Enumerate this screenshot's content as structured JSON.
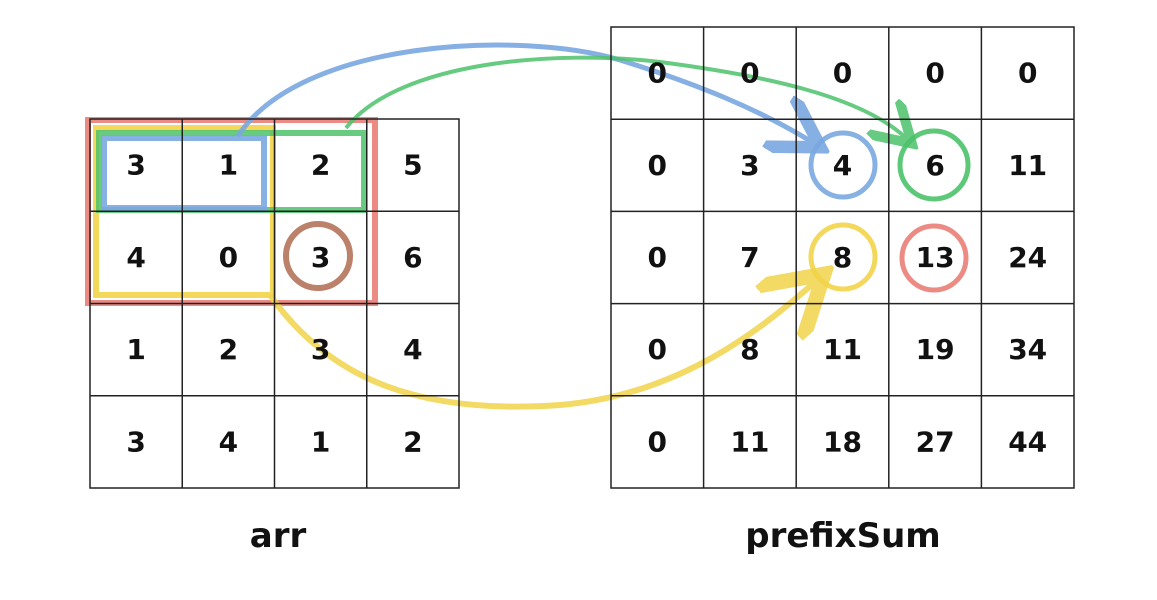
{
  "arr": {
    "label": "arr",
    "rows": [
      [
        "3",
        "1",
        "2",
        "5"
      ],
      [
        "4",
        "0",
        "3",
        "6"
      ],
      [
        "1",
        "2",
        "3",
        "4"
      ],
      [
        "3",
        "4",
        "1",
        "2"
      ]
    ]
  },
  "prefixSum": {
    "label": "prefixSum",
    "rows": [
      [
        "0",
        "0",
        "0",
        "0",
        "0"
      ],
      [
        "0",
        "3",
        "4",
        "6",
        "11"
      ],
      [
        "0",
        "7",
        "8",
        "13",
        "24"
      ],
      [
        "0",
        "8",
        "11",
        "19",
        "34"
      ],
      [
        "0",
        "11",
        "18",
        "27",
        "44"
      ]
    ]
  },
  "colors": {
    "red": "#e8776e",
    "yellow": "#f2d44a",
    "green": "#4cc26a",
    "blue": "#7aa8e0",
    "brown": "#b5735a"
  },
  "highlights": [
    {
      "name": "red-region",
      "color": "red"
    },
    {
      "name": "yellow-region",
      "color": "yellow"
    },
    {
      "name": "green-region",
      "color": "green"
    },
    {
      "name": "blue-region",
      "color": "blue"
    },
    {
      "name": "brown-circle",
      "color": "brown"
    }
  ]
}
